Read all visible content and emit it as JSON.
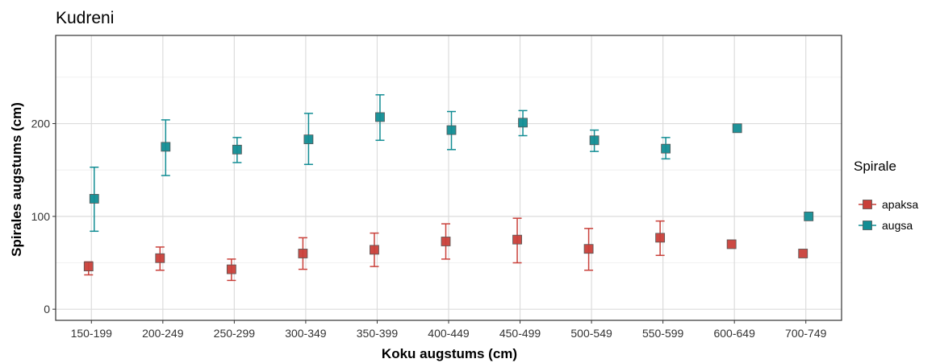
{
  "chart_data": {
    "type": "scatter",
    "title": "Kudreni",
    "xlabel": "Koku augstums (cm)",
    "ylabel": "Spirales augstums (cm)",
    "categories": [
      "150-199",
      "200-249",
      "250-299",
      "300-349",
      "350-399",
      "400-449",
      "450-499",
      "500-549",
      "550-599",
      "600-649",
      "700-749"
    ],
    "ylim": [
      -12,
      295
    ],
    "yticks": [
      0,
      100,
      200
    ],
    "grid": true,
    "legend": {
      "title": "Spirale",
      "position": "right"
    },
    "series": [
      {
        "name": "apaksa",
        "color": "#c9403a",
        "values": [
          46,
          55,
          43,
          60,
          64,
          73,
          75,
          65,
          77,
          70,
          60
        ],
        "lower": [
          37,
          42,
          31,
          43,
          46,
          54,
          50,
          42,
          58,
          null,
          null
        ],
        "upper": [
          51,
          67,
          54,
          77,
          82,
          92,
          98,
          87,
          95,
          null,
          null
        ]
      },
      {
        "name": "augsa",
        "color": "#128d94",
        "values": [
          119,
          175,
          172,
          183,
          207,
          193,
          201,
          182,
          173,
          195,
          100
        ],
        "lower": [
          84,
          144,
          158,
          156,
          182,
          172,
          187,
          170,
          162,
          null,
          null
        ],
        "upper": [
          153,
          204,
          185,
          211,
          231,
          213,
          214,
          193,
          185,
          null,
          null
        ]
      }
    ]
  }
}
